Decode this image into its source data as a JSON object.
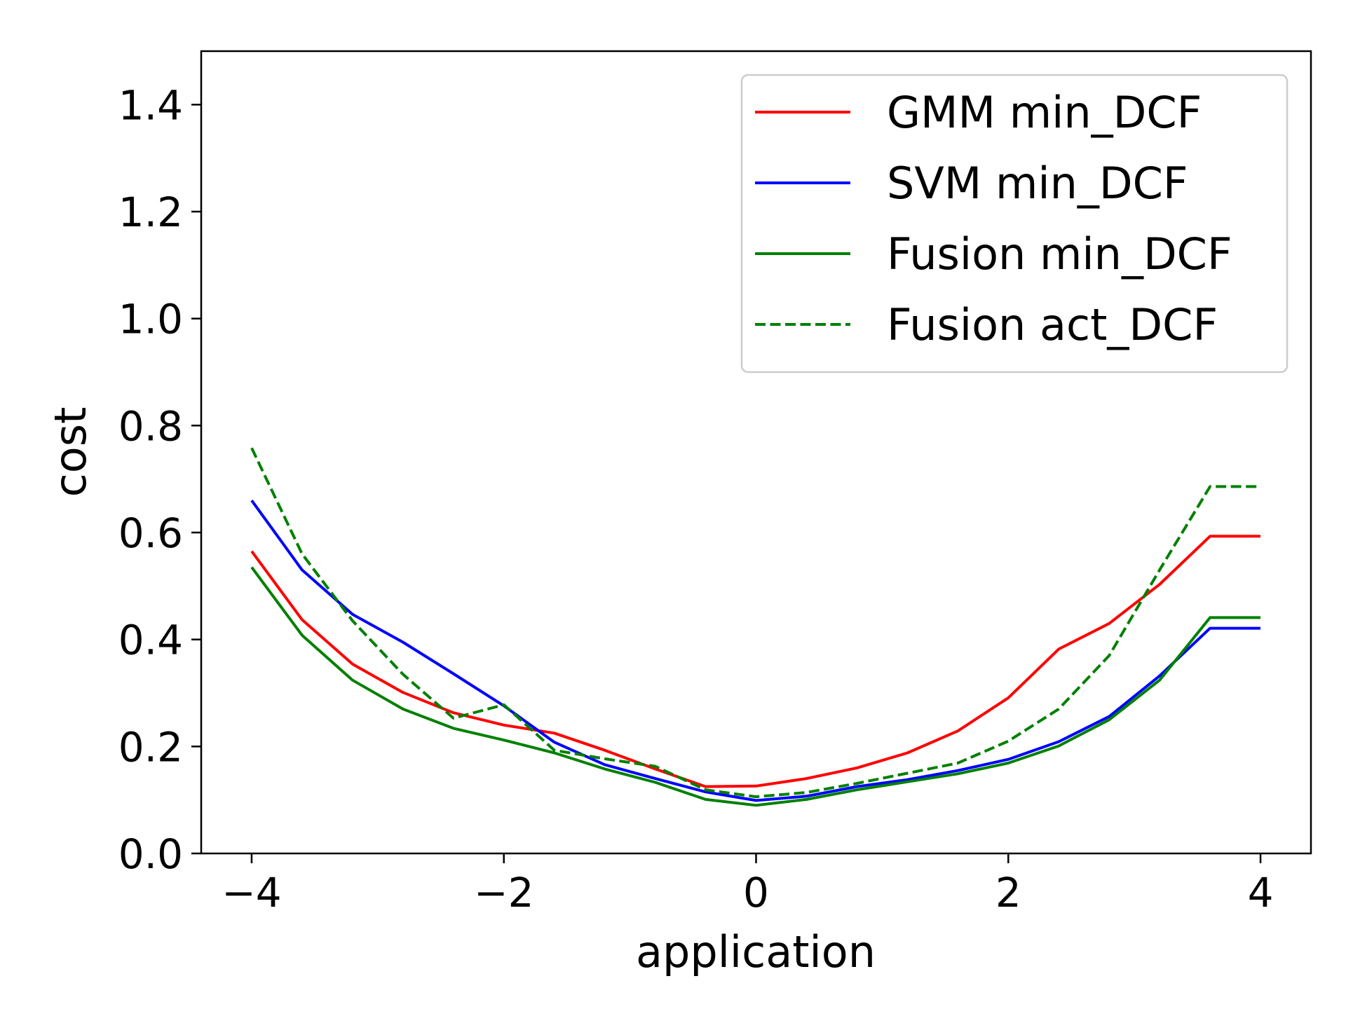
{
  "chart_data": {
    "type": "line",
    "title": "",
    "xlabel": "application",
    "ylabel": "cost",
    "xlim": [
      -4.4,
      4.4
    ],
    "ylim": [
      0.0,
      1.5
    ],
    "xticks": [
      -4,
      -2,
      0,
      2,
      4
    ],
    "xtick_labels": [
      "−4",
      "−2",
      "0",
      "2",
      "4"
    ],
    "yticks": [
      0.0,
      0.2,
      0.4,
      0.6,
      0.8,
      1.0,
      1.2,
      1.4
    ],
    "ytick_labels": [
      "0.0",
      "0.2",
      "0.4",
      "0.6",
      "0.8",
      "1.0",
      "1.2",
      "1.4"
    ],
    "grid": false,
    "legend_position": "top-right",
    "x": [
      -4.0,
      -3.6,
      -3.2,
      -2.8,
      -2.4,
      -2.0,
      -1.6,
      -1.2,
      -0.8,
      -0.4,
      0.0,
      0.4,
      0.8,
      1.2,
      1.6,
      2.0,
      2.4,
      2.8,
      3.2,
      3.6,
      4.0
    ],
    "series": [
      {
        "name": "GMM min_DCF",
        "color": "#ff0000",
        "dash": "solid",
        "values": [
          0.565,
          0.437,
          0.354,
          0.301,
          0.263,
          0.24,
          0.225,
          0.193,
          0.158,
          0.125,
          0.126,
          0.14,
          0.16,
          0.188,
          0.229,
          0.291,
          0.382,
          0.43,
          0.503,
          0.593,
          0.593
        ]
      },
      {
        "name": "SVM min_DCF",
        "color": "#0000ff",
        "dash": "solid",
        "values": [
          0.66,
          0.53,
          0.447,
          0.395,
          0.336,
          0.276,
          0.208,
          0.166,
          0.14,
          0.115,
          0.099,
          0.107,
          0.125,
          0.138,
          0.155,
          0.176,
          0.209,
          0.256,
          0.332,
          0.421,
          0.421
        ]
      },
      {
        "name": "Fusion min_DCF",
        "color": "#008000",
        "dash": "solid",
        "values": [
          0.535,
          0.408,
          0.324,
          0.27,
          0.234,
          0.212,
          0.188,
          0.158,
          0.133,
          0.101,
          0.09,
          0.101,
          0.119,
          0.134,
          0.149,
          0.169,
          0.201,
          0.25,
          0.324,
          0.441,
          0.441
        ]
      },
      {
        "name": "Fusion act_DCF",
        "color": "#008000",
        "dash": "dashed",
        "values": [
          0.758,
          0.56,
          0.435,
          0.335,
          0.253,
          0.278,
          0.193,
          0.177,
          0.163,
          0.119,
          0.106,
          0.114,
          0.131,
          0.15,
          0.169,
          0.21,
          0.27,
          0.37,
          0.53,
          0.686,
          0.686
        ]
      }
    ]
  }
}
